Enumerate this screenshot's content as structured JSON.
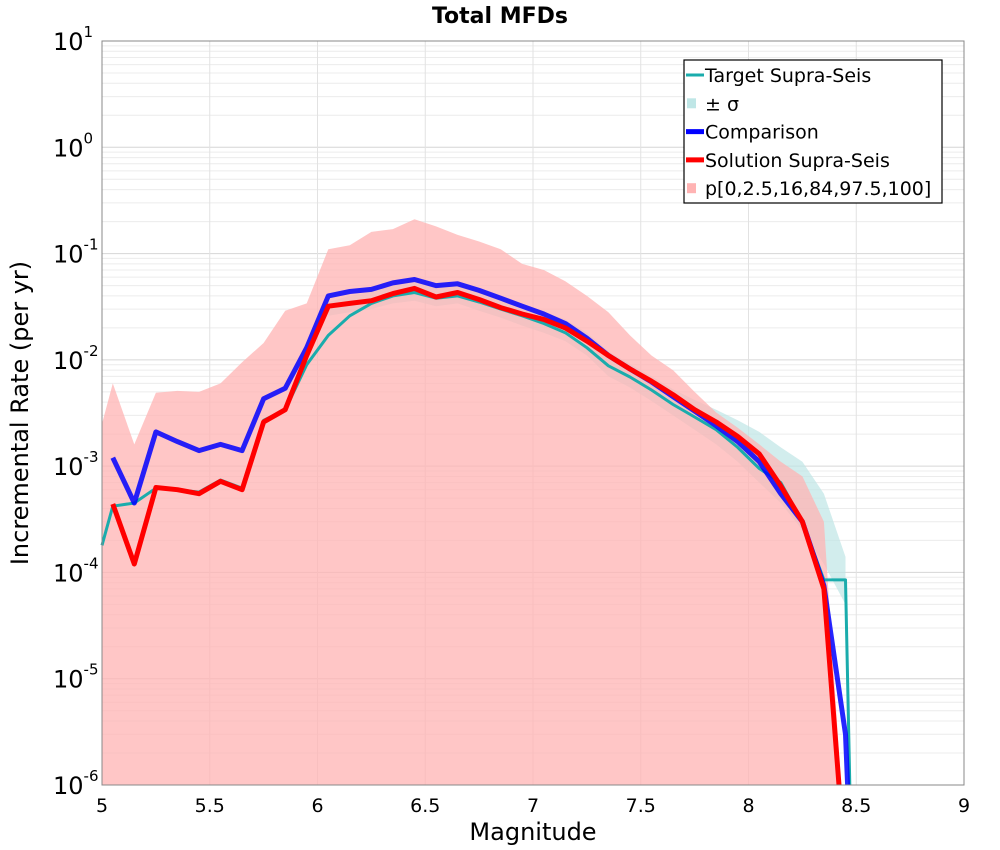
{
  "chart_data": {
    "type": "line",
    "title": "Total MFDs",
    "xlabel": "Magnitude",
    "ylabel": "Incremental Rate (per yr)",
    "xlim": [
      5,
      9
    ],
    "ylim": [
      1e-06,
      10
    ],
    "yscale": "log",
    "grid": true,
    "legend_position": "top-right",
    "x_ticks": [
      "5",
      "5.5",
      "6",
      "6.5",
      "7",
      "7.5",
      "8",
      "8.5",
      "9"
    ],
    "y_ticks": [
      {
        "base": "10",
        "exp": "1"
      },
      {
        "base": "10",
        "exp": "0"
      },
      {
        "base": "10",
        "exp": "-1"
      },
      {
        "base": "10",
        "exp": "-2"
      },
      {
        "base": "10",
        "exp": "-3"
      },
      {
        "base": "10",
        "exp": "-4"
      },
      {
        "base": "10",
        "exp": "-5"
      },
      {
        "base": "10",
        "exp": "-6"
      }
    ],
    "colors": {
      "target": "#1aacac",
      "target_band": "#bfe6e6",
      "comparison": "#0000ff",
      "solution": "#ff0000",
      "percentile_band": "#ffb3b3"
    },
    "x": [
      5.05,
      5.15,
      5.25,
      5.35,
      5.45,
      5.55,
      5.65,
      5.75,
      5.85,
      5.95,
      6.05,
      6.15,
      6.25,
      6.35,
      6.45,
      6.55,
      6.65,
      6.75,
      6.85,
      6.95,
      7.05,
      7.15,
      7.25,
      7.35,
      7.45,
      7.55,
      7.65,
      7.75,
      7.85,
      7.95,
      8.05,
      8.15,
      8.25,
      8.35,
      8.45
    ],
    "series": [
      {
        "name": "Target Supra-Seis",
        "key": "target",
        "x": [
          5.0,
          5.05,
          5.15,
          5.25,
          5.35,
          5.45,
          5.55,
          5.65,
          5.75,
          5.85,
          5.95,
          6.05,
          6.15,
          6.25,
          6.35,
          6.45,
          6.55,
          6.65,
          6.75,
          6.85,
          6.95,
          7.05,
          7.15,
          7.25,
          7.35,
          7.45,
          7.55,
          7.65,
          7.75,
          7.85,
          7.95,
          8.05,
          8.15,
          8.25,
          8.35,
          8.45,
          8.47
        ],
        "values": [
          0.00018,
          0.00042,
          0.00045,
          0.00062,
          0.0006,
          0.00057,
          0.00074,
          0.00062,
          0.0027,
          0.0034,
          0.009,
          0.017,
          0.026,
          0.034,
          0.04,
          0.043,
          0.038,
          0.04,
          0.035,
          0.03,
          0.026,
          0.022,
          0.018,
          0.013,
          0.0088,
          0.0069,
          0.0052,
          0.0038,
          0.0029,
          0.0022,
          0.0015,
          0.00095,
          0.0007,
          0.0003,
          8.5e-05,
          8.5e-05,
          1e-06
        ]
      },
      {
        "name": "Comparison",
        "key": "comparison",
        "x": [
          5.05,
          5.15,
          5.25,
          5.35,
          5.45,
          5.55,
          5.65,
          5.75,
          5.85,
          5.95,
          6.05,
          6.15,
          6.25,
          6.35,
          6.45,
          6.55,
          6.65,
          6.75,
          6.85,
          6.95,
          7.05,
          7.15,
          7.25,
          7.35,
          7.45,
          7.55,
          7.65,
          7.75,
          7.85,
          7.95,
          8.05,
          8.15,
          8.25,
          8.35,
          8.45,
          8.46
        ],
        "values": [
          0.0012,
          0.00045,
          0.0021,
          0.0017,
          0.0014,
          0.0016,
          0.0014,
          0.0043,
          0.0054,
          0.013,
          0.04,
          0.044,
          0.046,
          0.053,
          0.057,
          0.05,
          0.052,
          0.045,
          0.038,
          0.032,
          0.027,
          0.022,
          0.016,
          0.011,
          0.0082,
          0.0062,
          0.0045,
          0.0033,
          0.0024,
          0.0017,
          0.0011,
          0.00055,
          0.0003,
          7.5e-05,
          3e-06,
          1e-06
        ]
      },
      {
        "name": "Solution Supra-Seis",
        "key": "solution",
        "x": [
          5.05,
          5.15,
          5.25,
          5.35,
          5.45,
          5.55,
          5.65,
          5.75,
          5.85,
          5.95,
          6.05,
          6.15,
          6.25,
          6.35,
          6.45,
          6.55,
          6.65,
          6.75,
          6.85,
          6.95,
          7.05,
          7.15,
          7.25,
          7.35,
          7.45,
          7.55,
          7.65,
          7.75,
          7.85,
          7.95,
          8.05,
          8.15,
          8.25,
          8.35,
          8.42
        ],
        "values": [
          0.00044,
          0.00012,
          0.00063,
          0.0006,
          0.00055,
          0.00072,
          0.0006,
          0.0026,
          0.0034,
          0.011,
          0.032,
          0.034,
          0.036,
          0.042,
          0.047,
          0.039,
          0.043,
          0.037,
          0.031,
          0.027,
          0.024,
          0.02,
          0.015,
          0.011,
          0.0082,
          0.0063,
          0.0047,
          0.0034,
          0.0026,
          0.0019,
          0.0013,
          0.00065,
          0.0003,
          7e-05,
          1e-06
        ]
      }
    ],
    "bands": [
      {
        "name": "± σ",
        "key": "target_band",
        "x": [
          6.05,
          6.15,
          6.25,
          6.35,
          6.45,
          6.55,
          6.65,
          6.75,
          6.85,
          6.95,
          7.05,
          7.15,
          7.25,
          7.35,
          7.45,
          7.55,
          7.65,
          7.75,
          7.85,
          7.95,
          8.05,
          8.15,
          8.25,
          8.35,
          8.45
        ],
        "lower": [
          0.026,
          0.028,
          0.03,
          0.034,
          0.036,
          0.032,
          0.034,
          0.029,
          0.025,
          0.021,
          0.018,
          0.015,
          0.011,
          0.007,
          0.0055,
          0.0041,
          0.003,
          0.0022,
          0.0016,
          0.0011,
          0.0007,
          0.00045,
          0.00025,
          0.00012,
          5e-05
        ],
        "upper": [
          0.035,
          0.04,
          0.044,
          0.05,
          0.056,
          0.05,
          0.052,
          0.045,
          0.038,
          0.033,
          0.028,
          0.024,
          0.018,
          0.012,
          0.0091,
          0.007,
          0.0053,
          0.0042,
          0.0034,
          0.0027,
          0.0021,
          0.0015,
          0.0011,
          0.00055,
          0.00014
        ]
      },
      {
        "name": "p[0,2.5,16,84,97.5,100]",
        "key": "percentile_band",
        "x": [
          5.0,
          5.05,
          5.15,
          5.25,
          5.35,
          5.45,
          5.55,
          5.65,
          5.75,
          5.85,
          5.95,
          6.05,
          6.15,
          6.25,
          6.35,
          6.45,
          6.55,
          6.65,
          6.75,
          6.85,
          6.95,
          7.05,
          7.15,
          7.25,
          7.35,
          7.45,
          7.55,
          7.65,
          7.75,
          7.85,
          7.95,
          8.05,
          8.15,
          8.25,
          8.35,
          8.42
        ],
        "lower": [
          1e-06,
          1e-06,
          1e-06,
          1e-06,
          1e-06,
          1e-06,
          1e-06,
          1e-06,
          1e-06,
          1e-06,
          1e-06,
          1e-06,
          1e-06,
          1e-06,
          1e-06,
          1e-06,
          1e-06,
          1e-06,
          1e-06,
          1e-06,
          1e-06,
          1e-06,
          1e-06,
          1e-06,
          1e-06,
          1e-06,
          1e-06,
          1e-06,
          1e-06,
          1e-06,
          1e-06,
          1e-06,
          1e-06,
          1e-06,
          1e-06,
          1e-06
        ],
        "upper": [
          0.0025,
          0.006,
          0.0016,
          0.0049,
          0.0051,
          0.005,
          0.006,
          0.0095,
          0.0144,
          0.029,
          0.034,
          0.11,
          0.12,
          0.16,
          0.17,
          0.21,
          0.18,
          0.15,
          0.13,
          0.11,
          0.08,
          0.07,
          0.055,
          0.04,
          0.028,
          0.017,
          0.011,
          0.008,
          0.005,
          0.0032,
          0.0023,
          0.0016,
          0.0011,
          0.0008,
          0.0003,
          2e-06
        ]
      }
    ],
    "legend": [
      {
        "label": "Target Supra-Seis",
        "key": "target",
        "kind": "line"
      },
      {
        "label": "± σ",
        "key": "target_band",
        "kind": "patch"
      },
      {
        "label": "Comparison",
        "key": "comparison",
        "kind": "line"
      },
      {
        "label": "Solution Supra-Seis",
        "key": "solution",
        "kind": "line"
      },
      {
        "label": "p[0,2.5,16,84,97.5,100]",
        "key": "percentile_band",
        "kind": "patch"
      }
    ]
  }
}
